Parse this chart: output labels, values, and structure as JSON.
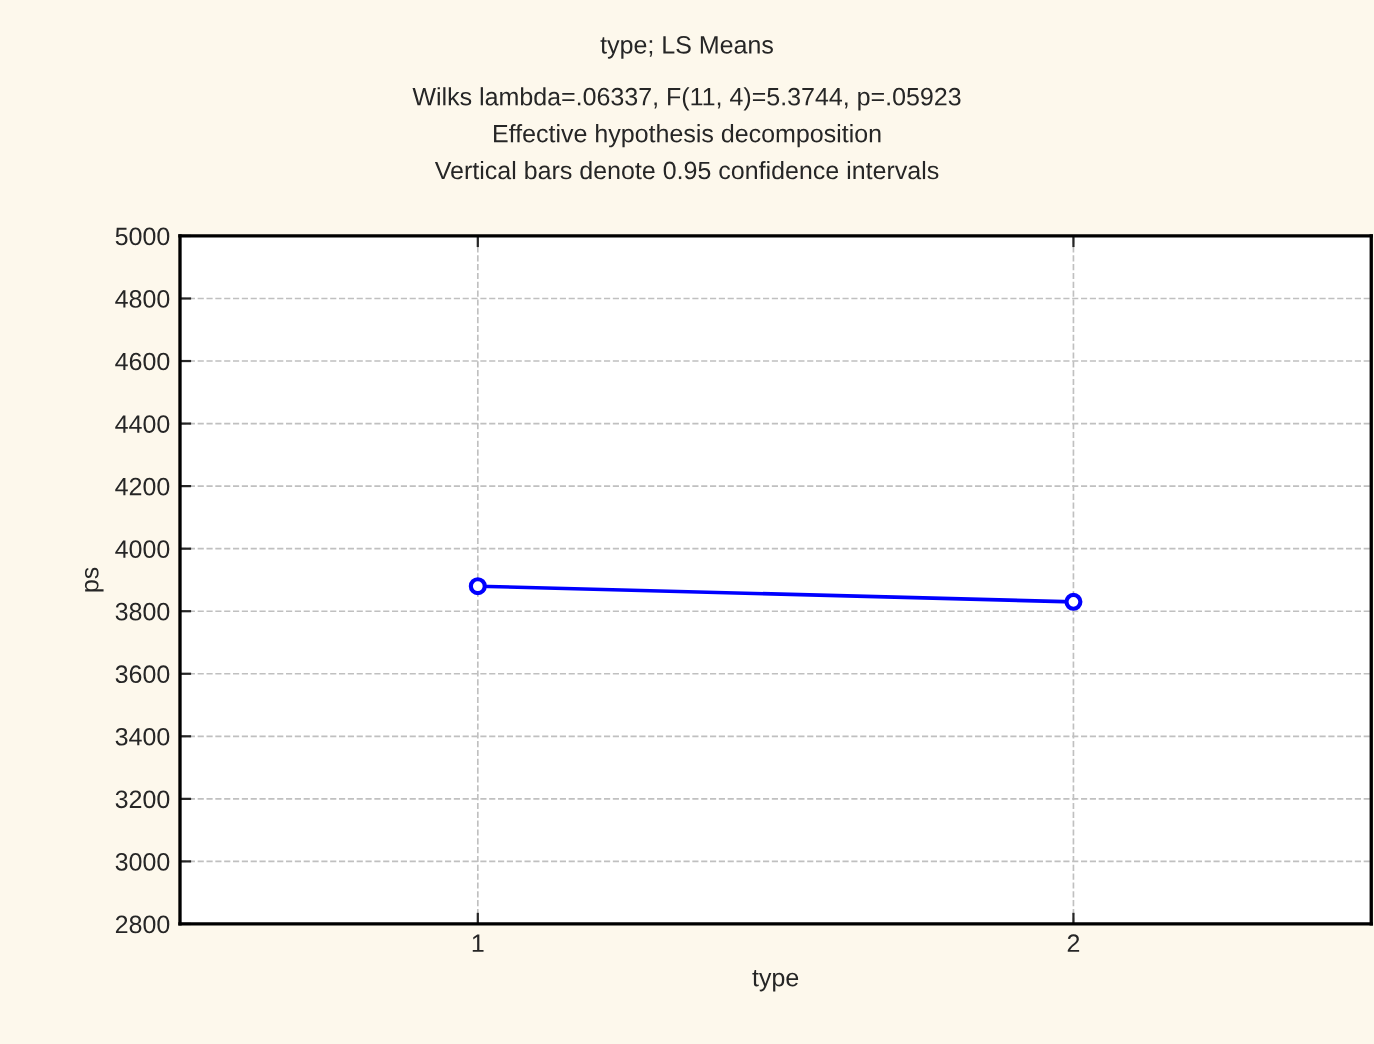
{
  "chart_data": {
    "type": "line",
    "title": "type; LS Means",
    "subtitle": "Wilks lambda=.06337, F(11, 4)=5.3744, p=.05923\nEffective hypothesis decomposition\nVertical bars denote 0.95 confidence intervals",
    "xlabel": "type",
    "ylabel": "ps",
    "categories": [
      "1",
      "2"
    ],
    "series": [
      {
        "color": "#0000ff",
        "values": [
          3880,
          3830
        ]
      }
    ],
    "ylim": [
      2800,
      5000
    ],
    "yticks": [
      2800,
      3000,
      3200,
      3400,
      3600,
      3800,
      4000,
      4200,
      4400,
      4600,
      4800,
      5000
    ],
    "grid": true,
    "marker": "circle",
    "line_style": "solid"
  }
}
